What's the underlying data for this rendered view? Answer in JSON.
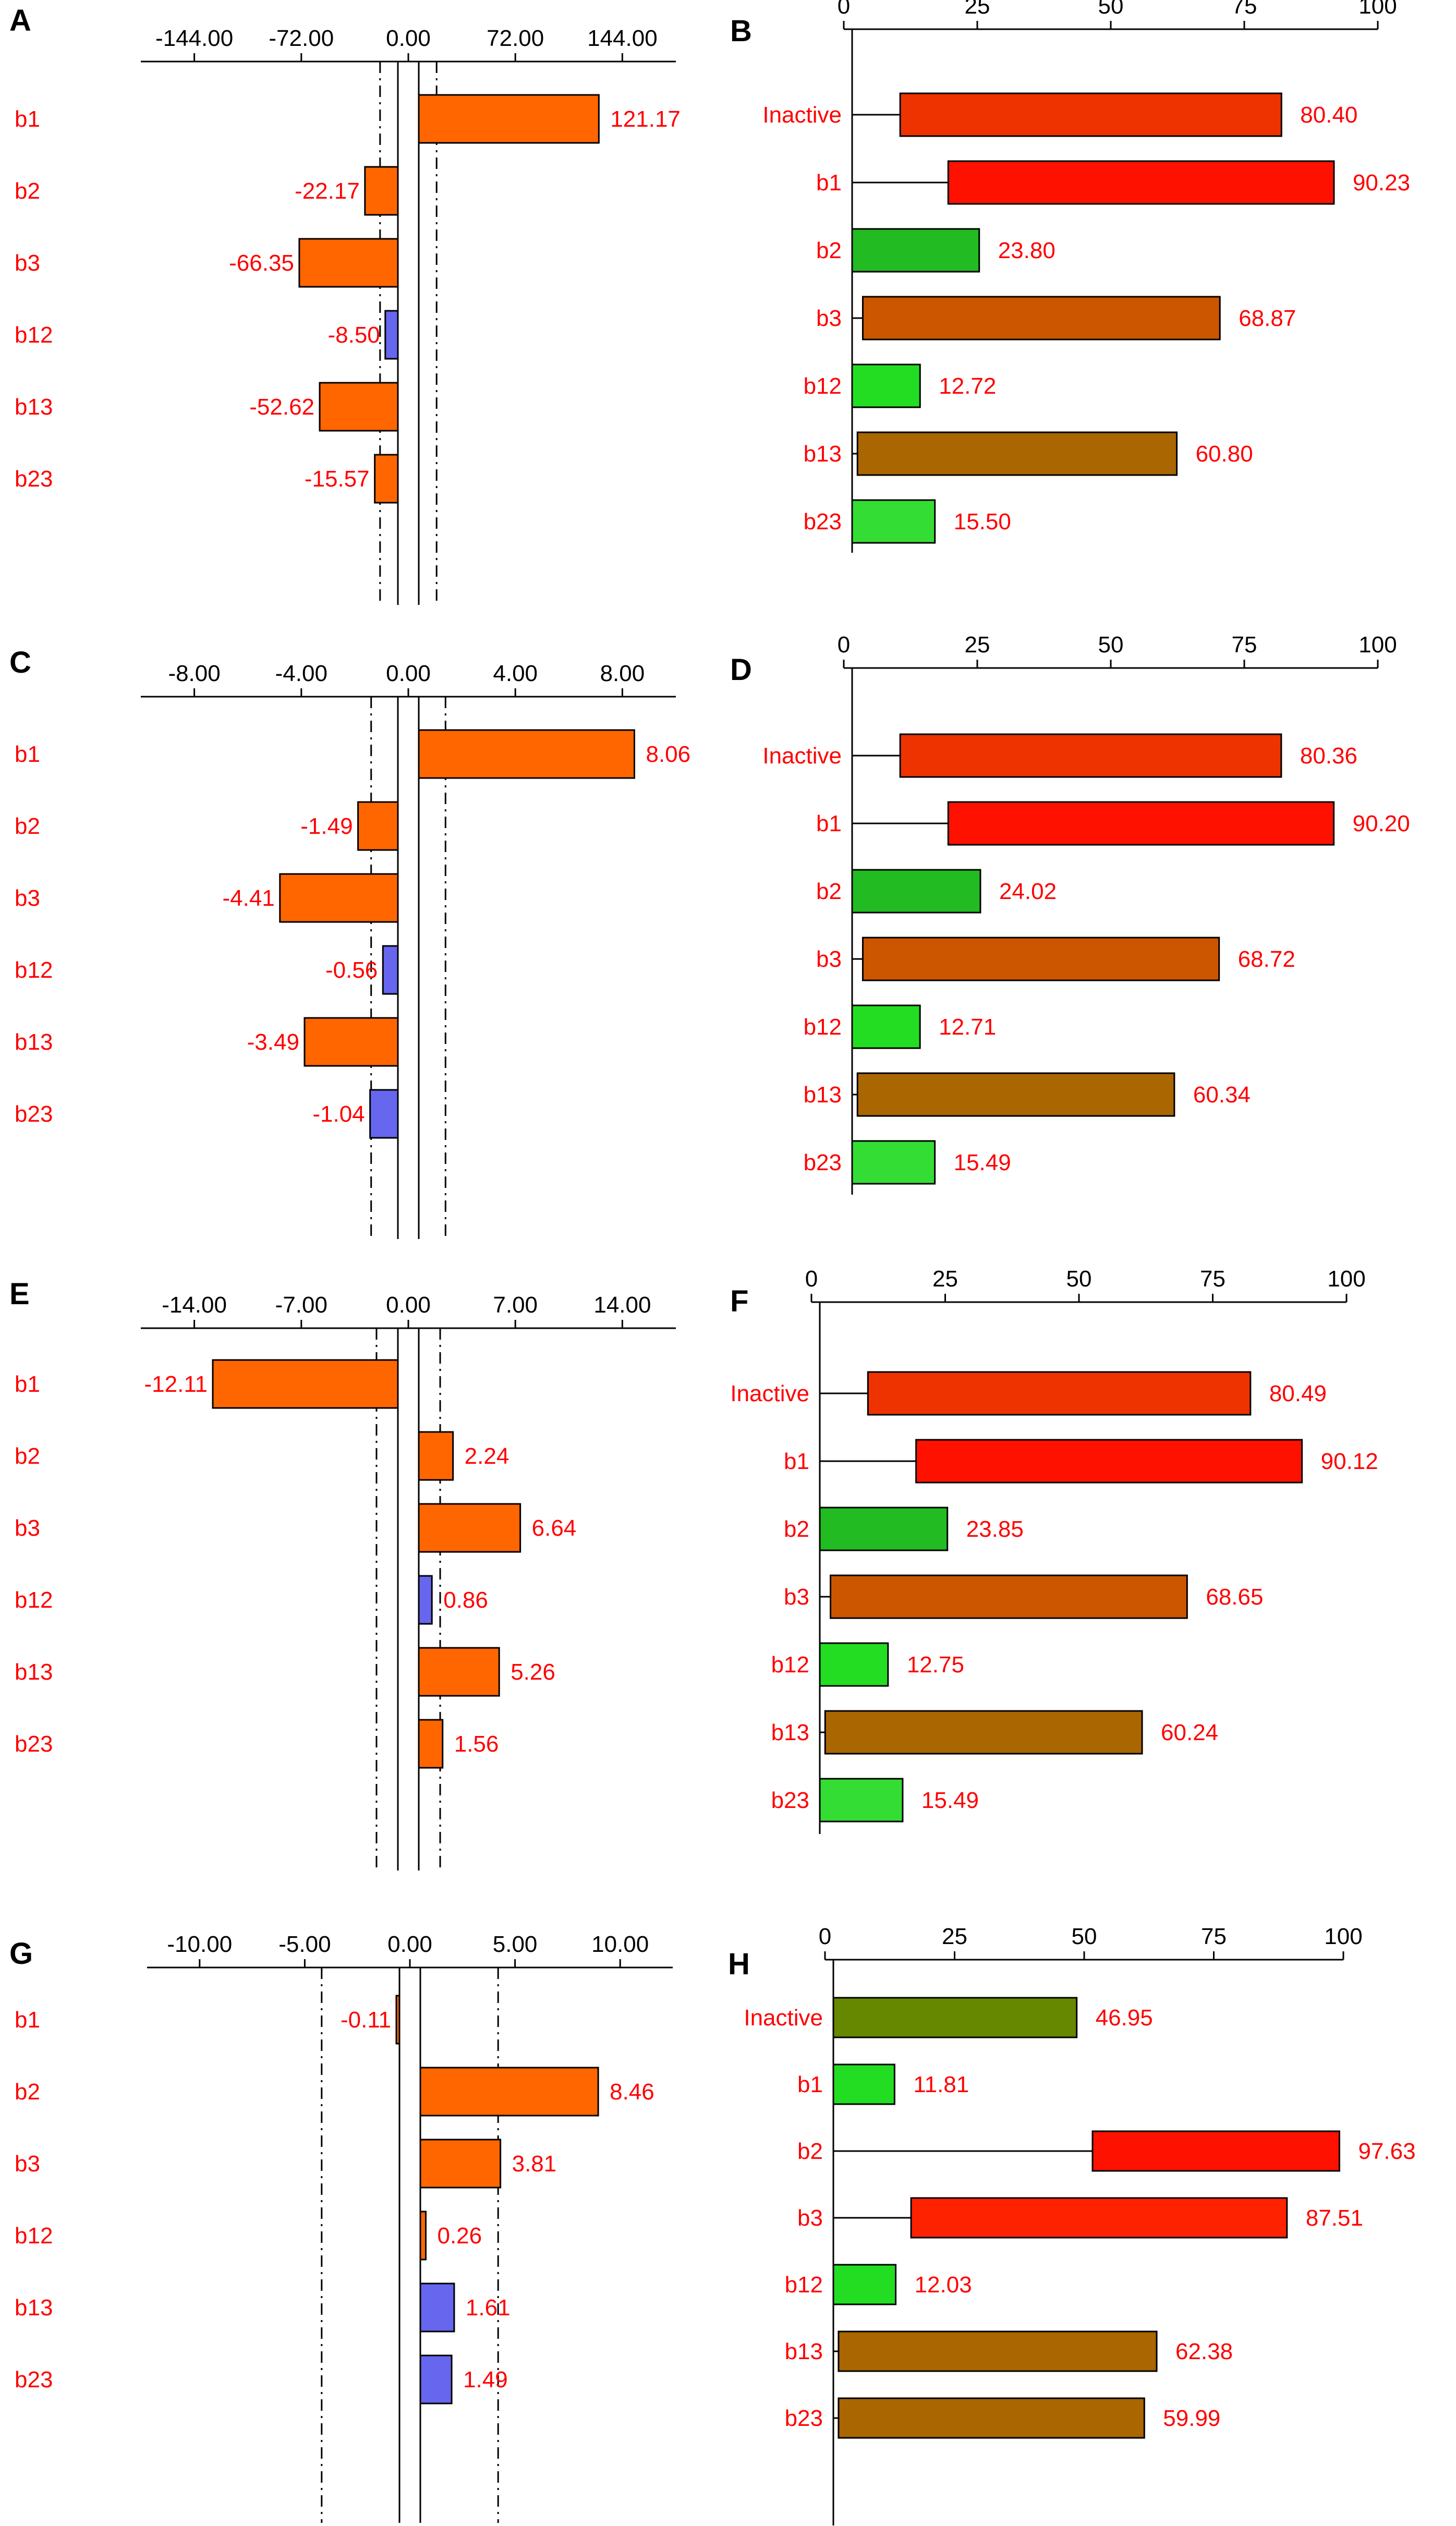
{
  "chart_data": [
    {
      "panel": "A",
      "type": "bar",
      "orientation": "horizontal",
      "categories": [
        "b1",
        "b2",
        "b3",
        "b12",
        "b13",
        "b23"
      ],
      "values": [
        121.17,
        -22.17,
        -66.35,
        -8.5,
        -52.62,
        -15.57
      ],
      "value_labels": [
        "121.17",
        "-22.17",
        "-66.35",
        "-8.50",
        "-52.62",
        "-15.57"
      ],
      "colors": [
        "#ff6600",
        "#ff6600",
        "#ff6600",
        "#6666ee",
        "#ff6600",
        "#ff6600"
      ],
      "ticks": [
        "-144.00",
        "-72.00",
        "0.00",
        "72.00",
        "144.00"
      ],
      "tick_values": [
        -144,
        -72,
        0,
        72,
        144
      ],
      "reference_lines": [
        -12,
        12
      ],
      "xlim": [
        -180,
        180
      ]
    },
    {
      "panel": "B",
      "type": "bar",
      "orientation": "horizontal",
      "categories": [
        "Inactive",
        "b1",
        "b2",
        "b3",
        "b12",
        "b13",
        "b23"
      ],
      "values": [
        80.4,
        90.23,
        23.8,
        68.87,
        12.72,
        60.8,
        15.5
      ],
      "value_labels": [
        "80.40",
        "90.23",
        "23.80",
        "68.87",
        "12.72",
        "60.80",
        "15.50"
      ],
      "starts": [
        9,
        18,
        0,
        2,
        0,
        1,
        0
      ],
      "colors": [
        "#ee3300",
        "#ff1100",
        "#22bb22",
        "#cc5500",
        "#22dd22",
        "#aa6600",
        "#33dd33"
      ],
      "ticks": [
        "0",
        "25",
        "50",
        "75",
        "100"
      ],
      "tick_values": [
        0,
        25,
        50,
        75,
        100
      ],
      "xlim": [
        0,
        100
      ]
    },
    {
      "panel": "C",
      "type": "bar",
      "orientation": "horizontal",
      "categories": [
        "b1",
        "b2",
        "b3",
        "b12",
        "b13",
        "b23"
      ],
      "values": [
        8.06,
        -1.49,
        -4.41,
        -0.56,
        -3.49,
        -1.04
      ],
      "value_labels": [
        "8.06",
        "-1.49",
        "-4.41",
        "-0.56",
        "-3.49",
        "-1.04"
      ],
      "colors": [
        "#ff6600",
        "#ff6600",
        "#ff6600",
        "#6666ee",
        "#ff6600",
        "#6666ee"
      ],
      "ticks": [
        "-8.00",
        "-4.00",
        "0.00",
        "4.00",
        "8.00"
      ],
      "tick_values": [
        -8,
        -4,
        0,
        4,
        8
      ],
      "reference_lines": [
        -1,
        1
      ],
      "xlim": [
        -10,
        10
      ]
    },
    {
      "panel": "D",
      "type": "bar",
      "orientation": "horizontal",
      "categories": [
        "Inactive",
        "b1",
        "b2",
        "b3",
        "b12",
        "b13",
        "b23"
      ],
      "values": [
        80.36,
        90.2,
        24.02,
        68.72,
        12.71,
        60.34,
        15.49
      ],
      "value_labels": [
        "80.36",
        "90.20",
        "24.02",
        "68.72",
        "12.71",
        "60.34",
        "15.49"
      ],
      "starts": [
        9,
        18,
        0,
        2,
        0,
        1,
        0
      ],
      "colors": [
        "#ee3300",
        "#ff1100",
        "#22bb22",
        "#cc5500",
        "#22dd22",
        "#aa6600",
        "#33dd33"
      ],
      "ticks": [
        "0",
        "25",
        "50",
        "75",
        "100"
      ],
      "tick_values": [
        0,
        25,
        50,
        75,
        100
      ],
      "xlim": [
        0,
        100
      ]
    },
    {
      "panel": "E",
      "type": "bar",
      "orientation": "horizontal",
      "categories": [
        "b1",
        "b2",
        "b3",
        "b12",
        "b13",
        "b23"
      ],
      "values": [
        -12.11,
        2.24,
        6.64,
        0.86,
        5.26,
        1.56
      ],
      "value_labels": [
        "-12.11",
        "2.24",
        "6.64",
        "0.86",
        "5.26",
        "1.56"
      ],
      "colors": [
        "#ff6600",
        "#ff6600",
        "#ff6600",
        "#6666ee",
        "#ff6600",
        "#ff6600"
      ],
      "ticks": [
        "-14.00",
        "-7.00",
        "0.00",
        "7.00",
        "14.00"
      ],
      "tick_values": [
        -14,
        -7,
        0,
        7,
        14
      ],
      "reference_lines": [
        -1.4,
        1.4
      ],
      "xlim": [
        -17.5,
        17.5
      ]
    },
    {
      "panel": "F",
      "type": "bar",
      "orientation": "horizontal",
      "categories": [
        "Inactive",
        "b1",
        "b2",
        "b3",
        "b12",
        "b13",
        "b23"
      ],
      "values": [
        80.49,
        90.12,
        23.85,
        68.65,
        12.75,
        60.24,
        15.49
      ],
      "value_labels": [
        "80.49",
        "90.12",
        "23.85",
        "68.65",
        "12.75",
        "60.24",
        "15.49"
      ],
      "starts": [
        9,
        18,
        0,
        2,
        0,
        1,
        0
      ],
      "colors": [
        "#ee3300",
        "#ff1100",
        "#22bb22",
        "#cc5500",
        "#22dd22",
        "#aa6600",
        "#33dd33"
      ],
      "ticks": [
        "0",
        "25",
        "50",
        "75",
        "100"
      ],
      "tick_values": [
        0,
        25,
        50,
        75,
        100
      ],
      "xlim": [
        0,
        100
      ]
    },
    {
      "panel": "G",
      "type": "bar",
      "orientation": "horizontal",
      "categories": [
        "b1",
        "b2",
        "b3",
        "b12",
        "b13",
        "b23"
      ],
      "values": [
        -0.11,
        8.46,
        3.81,
        0.26,
        1.61,
        1.49
      ],
      "value_labels": [
        "-0.11",
        "8.46",
        "3.81",
        "0.26",
        "1.61",
        "1.49"
      ],
      "colors": [
        "#ff6600",
        "#ff6600",
        "#ff6600",
        "#ff6600",
        "#6666ee",
        "#6666ee"
      ],
      "ticks": [
        "-10.00",
        "-5.00",
        "0.00",
        "5.00",
        "10.00"
      ],
      "tick_values": [
        -10,
        -5,
        0,
        5,
        10
      ],
      "reference_lines": [
        -3.7,
        3.7
      ],
      "xlim": [
        -12.5,
        12.5
      ]
    },
    {
      "panel": "H",
      "type": "bar",
      "orientation": "horizontal",
      "categories": [
        "Inactive",
        "b1",
        "b2",
        "b3",
        "b12",
        "b13",
        "b23"
      ],
      "values": [
        46.95,
        11.81,
        97.63,
        87.51,
        12.03,
        62.38,
        59.99
      ],
      "value_labels": [
        "46.95",
        "11.81",
        "97.63",
        "87.51",
        "12.03",
        "62.38",
        "59.99"
      ],
      "starts": [
        0,
        0,
        50,
        15,
        0,
        1,
        1
      ],
      "colors": [
        "#668800",
        "#22dd22",
        "#ff1100",
        "#ff2200",
        "#22dd22",
        "#aa6600",
        "#aa6600"
      ],
      "ticks": [
        "0",
        "25",
        "50",
        "75",
        "100"
      ],
      "tick_values": [
        0,
        25,
        50,
        75,
        100
      ],
      "xlim": [
        0,
        100
      ]
    }
  ]
}
